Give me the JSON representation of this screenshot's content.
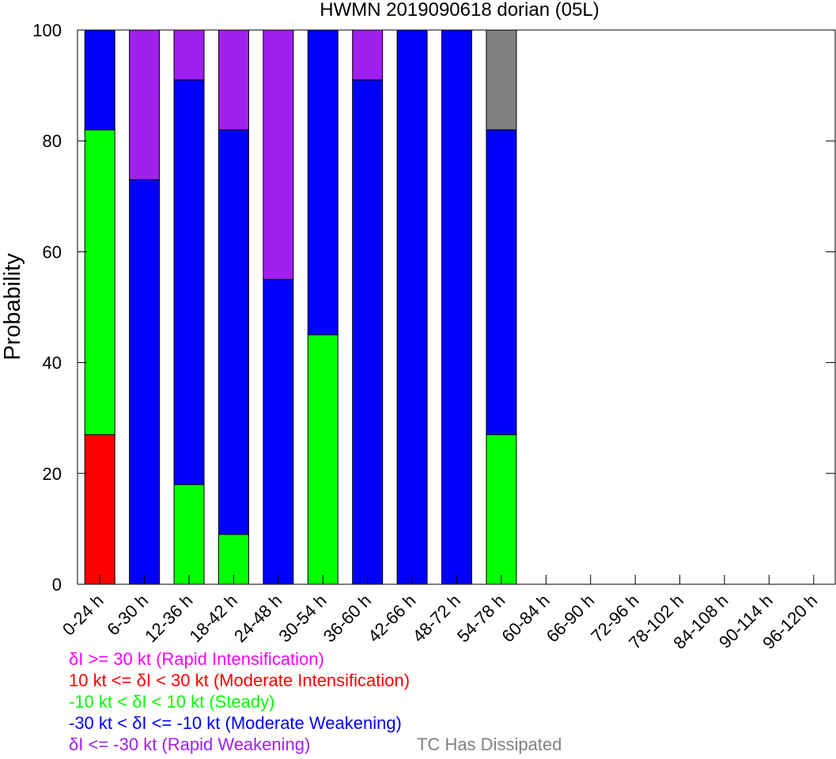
{
  "chart_data": {
    "type": "bar",
    "stacked": true,
    "title": "HWMN 2019090618 dorian (05L)",
    "xlabel": "",
    "ylabel": "Probability",
    "ylim": [
      0,
      100
    ],
    "yticks": [
      "0",
      "20",
      "40",
      "60",
      "80",
      "100"
    ],
    "grid": false,
    "categories": [
      "0-24 h",
      "6-30 h",
      "12-36 h",
      "18-42 h",
      "24-48 h",
      "30-54 h",
      "36-60 h",
      "42-66 h",
      "48-72 h",
      "54-78 h",
      "60-84 h",
      "66-90 h",
      "72-96 h",
      "78-102 h",
      "84-108 h",
      "90-114 h",
      "96-120 h"
    ],
    "series": [
      {
        "key": "rapid_weakening",
        "color": "#a020f0",
        "values": [
          0,
          27,
          9,
          18,
          45,
          0,
          9,
          0,
          0,
          0,
          0,
          0,
          0,
          0,
          0,
          0,
          0
        ]
      },
      {
        "key": "moderate_weakening",
        "color": "#0000ff",
        "values": [
          18,
          73,
          73,
          73,
          55,
          55,
          91,
          100,
          100,
          55,
          0,
          0,
          0,
          0,
          0,
          0,
          0
        ]
      },
      {
        "key": "steady",
        "color": "#00ff00",
        "values": [
          55,
          0,
          18,
          9,
          0,
          45,
          0,
          0,
          0,
          27,
          0,
          0,
          0,
          0,
          0,
          0,
          0
        ]
      },
      {
        "key": "moderate_intensification",
        "color": "#ff0000",
        "values": [
          27,
          0,
          0,
          0,
          0,
          0,
          0,
          0,
          0,
          0,
          0,
          0,
          0,
          0,
          0,
          0,
          0
        ]
      },
      {
        "key": "rapid_intensification",
        "color": "#ff00ff",
        "values": [
          0,
          0,
          0,
          0,
          0,
          0,
          0,
          0,
          0,
          0,
          0,
          0,
          0,
          0,
          0,
          0,
          0
        ]
      },
      {
        "key": "dissipated",
        "color": "#808080",
        "values": [
          0,
          0,
          0,
          0,
          0,
          0,
          0,
          0,
          0,
          18,
          0,
          0,
          0,
          0,
          0,
          0,
          0
        ]
      }
    ],
    "stack_order": [
      "moderate_intensification",
      "steady",
      "moderate_weakening",
      "rapid_weakening",
      "rapid_intensification",
      "dissipated"
    ],
    "legend": {
      "placement": "bottom-left",
      "entries": [
        {
          "text": "δI >= 30 kt (Rapid Intensification)",
          "color": "#ff00ff"
        },
        {
          "text": "10 kt <= δI < 30 kt (Moderate Intensification)",
          "color": "#ff0000"
        },
        {
          "text": "-10 kt < δI < 10 kt (Steady)",
          "color": "#00ff00"
        },
        {
          "text": "-30 kt < δI <= -10 kt (Moderate Weakening)",
          "color": "#0000ff"
        },
        {
          "text": "δI <= -30 kt (Rapid Weakening)",
          "color": "#a020f0"
        },
        {
          "text": "TC Has Dissipated",
          "color": "#808080"
        }
      ]
    }
  }
}
